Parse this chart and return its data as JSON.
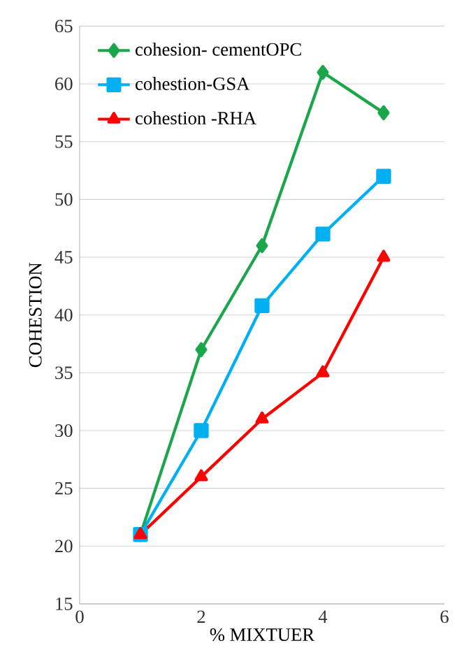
{
  "chart_data": {
    "type": "line",
    "xlabel": "% MIXTUER",
    "ylabel": "COHESTION",
    "xlim": [
      0,
      6
    ],
    "xticks": [
      0,
      2,
      4,
      6
    ],
    "ylim": [
      15,
      65
    ],
    "yticks": [
      15,
      20,
      25,
      30,
      35,
      40,
      45,
      50,
      55,
      60,
      65
    ],
    "grid": "y",
    "legend": "top left",
    "x": [
      1,
      2,
      3,
      4,
      5
    ],
    "series": [
      {
        "name": "cohesion- cementOPC",
        "color": "#1aa64a",
        "marker": "diamond",
        "values": [
          21,
          37,
          46,
          61,
          57.5
        ]
      },
      {
        "name": "cohestion-GSA",
        "color": "#00b0f0",
        "marker": "square",
        "values": [
          21,
          30,
          40.8,
          47,
          52
        ]
      },
      {
        "name": "cohestion -RHA",
        "color": "#ff0000",
        "marker": "triangle",
        "values": [
          21,
          26,
          31,
          35,
          45
        ]
      }
    ]
  }
}
